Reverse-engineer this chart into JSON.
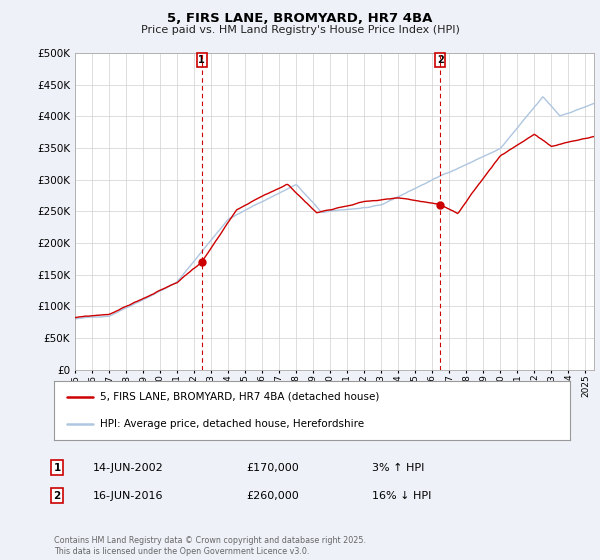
{
  "title": "5, FIRS LANE, BROMYARD, HR7 4BA",
  "subtitle": "Price paid vs. HM Land Registry's House Price Index (HPI)",
  "ytick_values": [
    0,
    50000,
    100000,
    150000,
    200000,
    250000,
    300000,
    350000,
    400000,
    450000,
    500000
  ],
  "ylim": [
    0,
    500000
  ],
  "xlim_start": 1995.0,
  "xlim_end": 2025.5,
  "hpi_color": "#aec6e0",
  "price_color": "#cc0000",
  "marker1_x": 2002.45,
  "marker1_y": 170000,
  "marker2_x": 2016.46,
  "marker2_y": 260000,
  "legend_line1": "5, FIRS LANE, BROMYARD, HR7 4BA (detached house)",
  "legend_line2": "HPI: Average price, detached house, Herefordshire",
  "annotation1_date": "14-JUN-2002",
  "annotation1_price": "£170,000",
  "annotation1_change": "3% ↑ HPI",
  "annotation2_date": "16-JUN-2016",
  "annotation2_price": "£260,000",
  "annotation2_change": "16% ↓ HPI",
  "footer": "Contains HM Land Registry data © Crown copyright and database right 2025.\nThis data is licensed under the Open Government Licence v3.0.",
  "background_color": "#eef2f8",
  "plot_bg_color": "#ffffff",
  "grid_color": "#d0d0d0"
}
